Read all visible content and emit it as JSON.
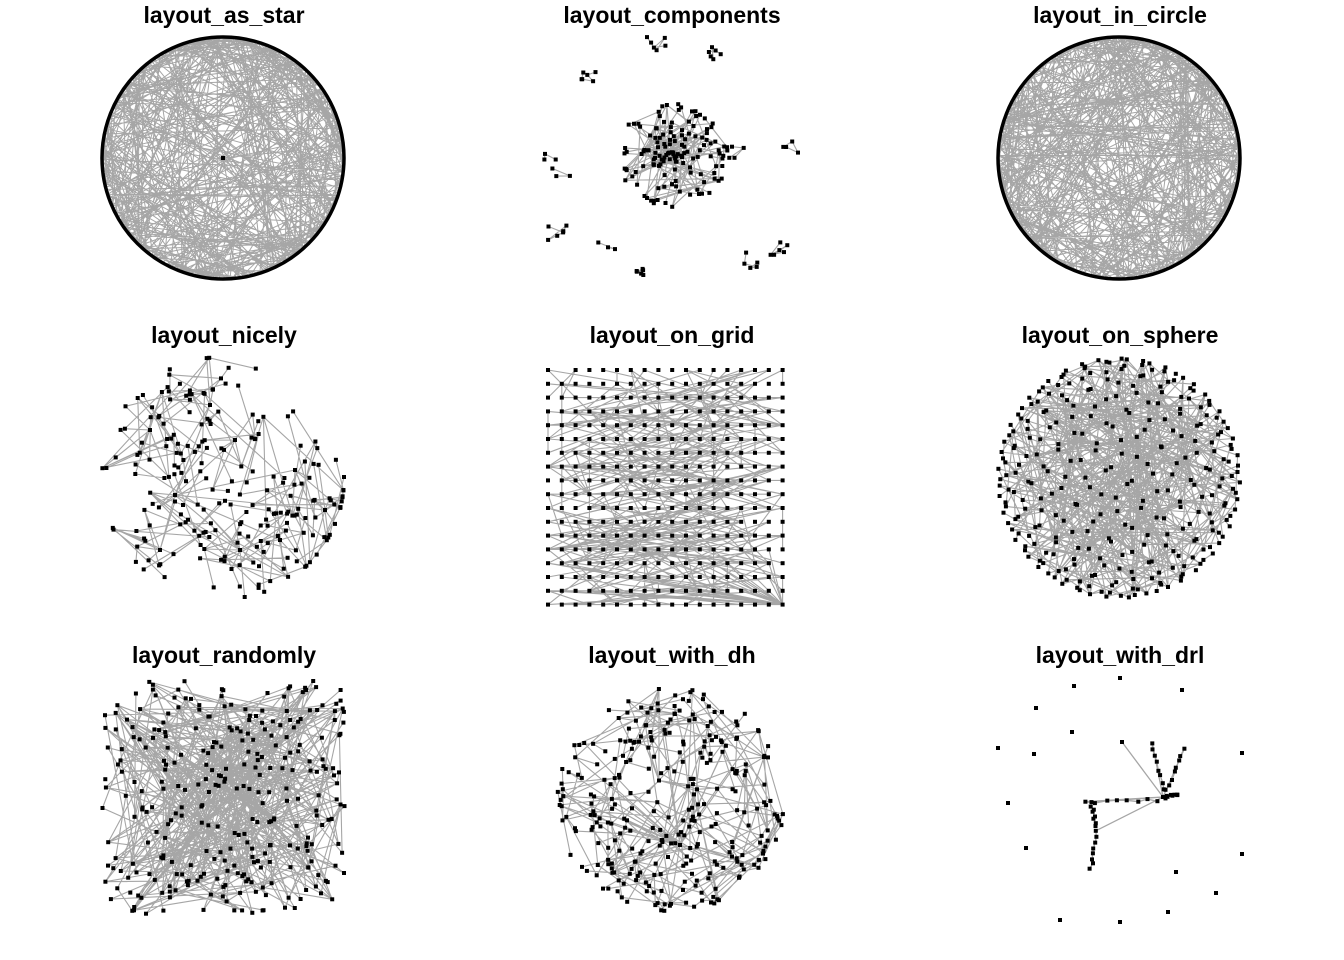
{
  "colors": {
    "edge": "#a6a6a6",
    "vertex": "#000000",
    "background": "#ffffff"
  },
  "panels": [
    {
      "id": "layout_as_star",
      "title": "layout_as_star",
      "layout": "star"
    },
    {
      "id": "layout_components",
      "title": "layout_components",
      "layout": "components"
    },
    {
      "id": "layout_in_circle",
      "title": "layout_in_circle",
      "layout": "circle"
    },
    {
      "id": "layout_nicely",
      "title": "layout_nicely",
      "layout": "nicely"
    },
    {
      "id": "layout_on_grid",
      "title": "layout_on_grid",
      "layout": "grid"
    },
    {
      "id": "layout_on_sphere",
      "title": "layout_on_sphere",
      "layout": "sphere"
    },
    {
      "id": "layout_randomly",
      "title": "layout_randomly",
      "layout": "random"
    },
    {
      "id": "layout_with_dh",
      "title": "layout_with_dh",
      "layout": "dh"
    },
    {
      "id": "layout_with_drl",
      "title": "layout_with_drl",
      "layout": "drl"
    }
  ]
}
